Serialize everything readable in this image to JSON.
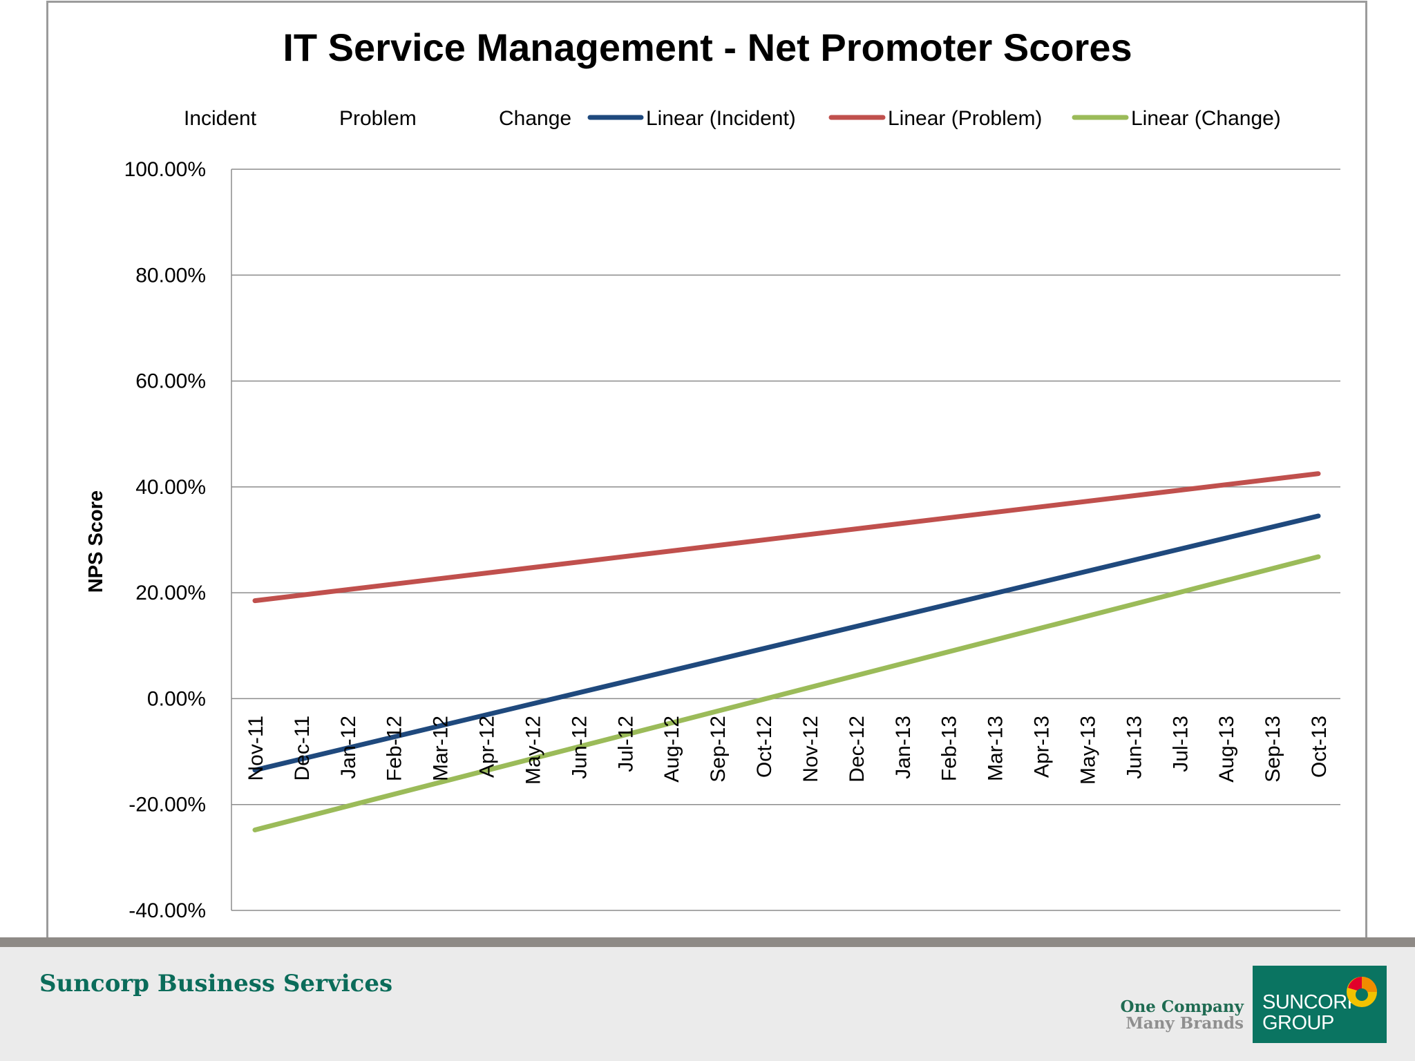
{
  "chart_data": {
    "type": "line",
    "title": "IT Service Management - Net Promoter Scores",
    "xlabel": "",
    "ylabel": "NPS Score",
    "categories": [
      "Nov-11",
      "Dec-11",
      "Jan-12",
      "Feb-12",
      "Mar-12",
      "Apr-12",
      "May-12",
      "Jun-12",
      "Jul-12",
      "Aug-12",
      "Sep-12",
      "Oct-12",
      "Nov-12",
      "Dec-12",
      "Jan-13",
      "Feb-13",
      "Mar-13",
      "Apr-13",
      "May-13",
      "Jun-13",
      "Jul-13",
      "Aug-13",
      "Sep-13",
      "Oct-13"
    ],
    "ylim": [
      -0.4,
      1.0
    ],
    "yticks": [
      -0.4,
      -0.2,
      0,
      0.2,
      0.4,
      0.6,
      0.8,
      1.0
    ],
    "ytick_labels": [
      "-40.00%",
      "-20.00%",
      "0.00%",
      "20.00%",
      "40.00%",
      "60.00%",
      "80.00%",
      "100.00%"
    ],
    "grid": "horizontal",
    "legend_position": "top",
    "legend": [
      "Incident",
      "Problem",
      "Change",
      "Linear (Incident)",
      "Linear (Problem)",
      "Linear (Change)"
    ],
    "series": [
      {
        "name": "Linear (Incident)",
        "color": "#1f497d",
        "start": -0.135,
        "end": 0.345
      },
      {
        "name": "Linear (Problem)",
        "color": "#c0504d",
        "start": 0.185,
        "end": 0.425
      },
      {
        "name": "Linear (Change)",
        "color": "#9bbb59",
        "start": -0.248,
        "end": 0.268
      }
    ]
  },
  "footer": {
    "title": "Suncorp Business Services",
    "tagline_1": "One Company",
    "tagline_2": "Many Brands",
    "logo_1": "SUNCORP",
    "logo_2": "GROUP"
  }
}
